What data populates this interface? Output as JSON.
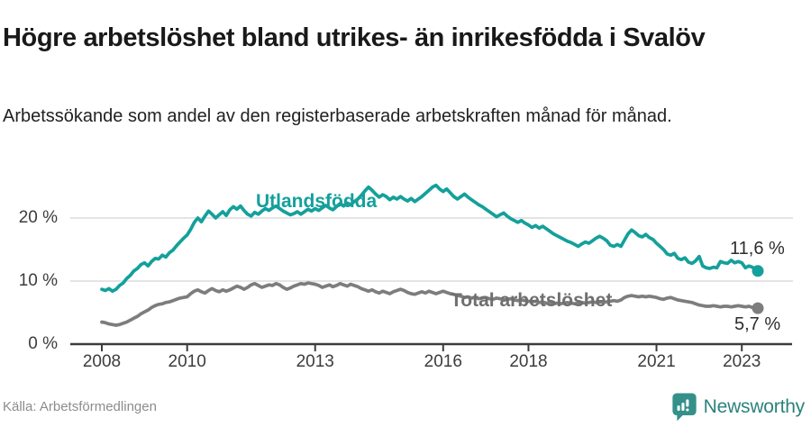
{
  "header": {
    "title": "Högre arbetslöshet bland utrikes- än inrikesfödda i Svalöv",
    "subtitle": "Arbetssökande som andel av den registerbaserade arbetskraften månad för månad."
  },
  "footer": {
    "source": "Källa: Arbetsförmedlingen",
    "brand_name": "Newsworthy",
    "brand_color": "#35908a"
  },
  "colors": {
    "series_foreign": "#14a09b",
    "series_total": "#7d7d7d",
    "gridline": "#dcdcdc",
    "axis": "#3c3c3c",
    "value_label": "#2d2d2d"
  },
  "chart_data": {
    "type": "line",
    "title": "Högre arbetslöshet bland utrikes- än inrikesfödda i Svalöv",
    "xlabel": "",
    "ylabel": "Arbetssökande som andel av den registerbaserade arbetskraften",
    "x_unit": "month",
    "x_start": "2008-01",
    "x_end": "2023-05",
    "ylim": [
      0,
      26
    ],
    "grid": "horizontal",
    "legend_position": "inline-labels",
    "x_ticks": [
      2008,
      2010,
      2013,
      2016,
      2018,
      2021,
      2023
    ],
    "y_ticks": [
      {
        "value": 0,
        "label": "0 %"
      },
      {
        "value": 10,
        "label": "10 %"
      },
      {
        "value": 20,
        "label": "20 %"
      }
    ],
    "series": [
      {
        "name": "Utlandsfödda",
        "color": "#14a09b",
        "end_label": "11,6 %",
        "end_value": 11.6,
        "values": [
          8.7,
          8.5,
          8.8,
          8.4,
          8.7,
          9.3,
          9.7,
          10.4,
          10.9,
          11.6,
          12.0,
          12.6,
          12.9,
          12.4,
          13.1,
          13.6,
          13.5,
          14.1,
          13.8,
          14.5,
          14.9,
          15.6,
          16.2,
          16.8,
          17.3,
          18.2,
          19.3,
          20.0,
          19.4,
          20.3,
          21.1,
          20.6,
          20.0,
          20.5,
          21.0,
          20.4,
          21.3,
          21.8,
          21.4,
          21.9,
          21.2,
          20.6,
          20.3,
          20.9,
          20.6,
          21.1,
          21.5,
          21.2,
          21.6,
          21.9,
          21.5,
          21.1,
          20.8,
          20.5,
          20.7,
          21.0,
          20.6,
          21.0,
          21.4,
          21.1,
          21.5,
          21.2,
          21.6,
          22.0,
          21.6,
          21.3,
          21.8,
          22.3,
          21.9,
          22.4,
          22.1,
          22.6,
          23.0,
          23.6,
          24.3,
          24.9,
          24.4,
          23.8,
          23.3,
          23.7,
          23.4,
          22.9,
          23.3,
          23.0,
          23.4,
          23.0,
          22.7,
          23.1,
          22.6,
          23.0,
          23.4,
          23.9,
          24.4,
          24.9,
          25.2,
          24.6,
          24.2,
          24.6,
          24.0,
          23.4,
          23.0,
          23.4,
          23.8,
          23.3,
          22.9,
          22.5,
          22.1,
          21.8,
          21.4,
          21.0,
          20.6,
          20.2,
          20.5,
          20.8,
          20.3,
          19.9,
          19.6,
          19.3,
          19.6,
          19.2,
          18.9,
          18.5,
          18.8,
          18.4,
          18.7,
          18.3,
          17.9,
          17.5,
          17.2,
          16.9,
          16.6,
          16.3,
          16.1,
          15.8,
          15.5,
          15.9,
          16.2,
          16.0,
          16.4,
          16.8,
          17.1,
          16.8,
          16.4,
          15.7,
          15.5,
          15.8,
          15.5,
          16.5,
          17.5,
          18.1,
          17.7,
          17.2,
          17.0,
          17.4,
          16.9,
          16.6,
          16.0,
          15.5,
          15.0,
          14.3,
          14.1,
          14.4,
          13.6,
          13.4,
          13.7,
          13.0,
          12.8,
          13.2,
          13.9,
          12.4,
          12.1,
          12.0,
          12.2,
          12.1,
          13.1,
          12.9,
          12.8,
          13.3,
          12.9,
          13.1,
          12.9,
          12.1,
          12.4,
          12.2,
          11.6
        ]
      },
      {
        "name": "Total arbetslöshet",
        "color": "#7d7d7d",
        "end_label": "5,7 %",
        "end_value": 5.7,
        "values": [
          3.5,
          3.4,
          3.2,
          3.1,
          3.0,
          3.1,
          3.3,
          3.5,
          3.8,
          4.1,
          4.4,
          4.8,
          5.1,
          5.4,
          5.8,
          6.1,
          6.3,
          6.4,
          6.6,
          6.7,
          6.9,
          7.1,
          7.3,
          7.4,
          7.5,
          8.0,
          8.4,
          8.6,
          8.3,
          8.1,
          8.5,
          8.8,
          8.5,
          8.3,
          8.6,
          8.4,
          8.6,
          8.9,
          9.2,
          9.0,
          8.7,
          9.0,
          9.4,
          9.6,
          9.3,
          9.0,
          9.2,
          9.4,
          9.3,
          9.6,
          9.4,
          9.0,
          8.7,
          8.9,
          9.2,
          9.4,
          9.6,
          9.5,
          9.7,
          9.6,
          9.5,
          9.3,
          9.0,
          9.2,
          9.4,
          9.1,
          9.3,
          9.6,
          9.4,
          9.2,
          9.5,
          9.3,
          9.1,
          8.8,
          8.6,
          8.4,
          8.6,
          8.3,
          8.1,
          8.4,
          8.2,
          8.0,
          8.3,
          8.5,
          8.7,
          8.5,
          8.2,
          8.0,
          7.9,
          8.1,
          8.3,
          8.1,
          8.4,
          8.2,
          8.0,
          8.2,
          8.4,
          8.2,
          8.0,
          7.9,
          7.7,
          7.6,
          7.4,
          7.5,
          7.3,
          7.4,
          7.2,
          7.3,
          7.4,
          7.2,
          7.1,
          7.3,
          7.2,
          7.0,
          7.1,
          7.2,
          7.0,
          6.9,
          7.0,
          6.9,
          6.8,
          6.7,
          6.8,
          6.6,
          6.7,
          6.5,
          6.6,
          6.4,
          6.5,
          6.4,
          6.5,
          6.6,
          6.5,
          6.4,
          6.5,
          6.6,
          6.5,
          6.6,
          6.7,
          6.6,
          6.7,
          6.6,
          6.7,
          6.8,
          6.9,
          6.8,
          7.0,
          7.4,
          7.6,
          7.7,
          7.6,
          7.5,
          7.6,
          7.5,
          7.6,
          7.5,
          7.4,
          7.2,
          7.1,
          7.3,
          7.4,
          7.2,
          7.0,
          6.9,
          6.8,
          6.7,
          6.6,
          6.4,
          6.2,
          6.1,
          6.0,
          6.0,
          6.1,
          6.0,
          5.9,
          6.0,
          6.0,
          5.9,
          6.0,
          6.1,
          6.0,
          5.9,
          6.0,
          5.8,
          5.7
        ]
      }
    ]
  }
}
